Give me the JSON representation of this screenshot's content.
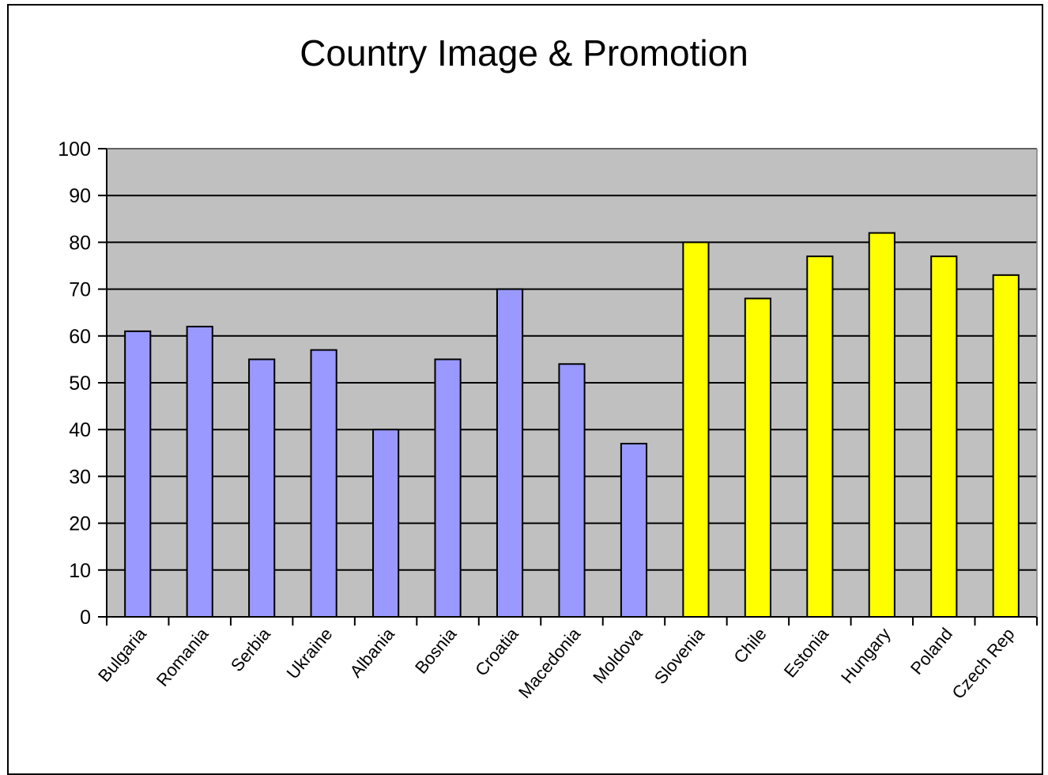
{
  "chart_data": {
    "type": "bar",
    "title": "Country Image & Promotion",
    "xlabel": "",
    "ylabel": "",
    "ylim": [
      0,
      100
    ],
    "yticks": [
      0,
      10,
      20,
      30,
      40,
      50,
      60,
      70,
      80,
      90,
      100
    ],
    "grid": true,
    "legend": "none",
    "categories": [
      "Bulgaria",
      "Romania",
      "Serbia",
      "Ukraine",
      "Albania",
      "Bosnia",
      "Croatia",
      "Macedonia",
      "Moldova",
      "Slovenia",
      "Chile",
      "Estonia",
      "Hungary",
      "Poland",
      "Czech Rep"
    ],
    "values": [
      61,
      62,
      55,
      57,
      40,
      55,
      70,
      54,
      37,
      80,
      68,
      77,
      82,
      77,
      73
    ],
    "bar_colors": [
      "#9999ff",
      "#9999ff",
      "#9999ff",
      "#9999ff",
      "#9999ff",
      "#9999ff",
      "#9999ff",
      "#9999ff",
      "#9999ff",
      "#ffff00",
      "#ffff00",
      "#ffff00",
      "#ffff00",
      "#ffff00",
      "#ffff00"
    ],
    "plot_background": "#c0c0c0"
  }
}
